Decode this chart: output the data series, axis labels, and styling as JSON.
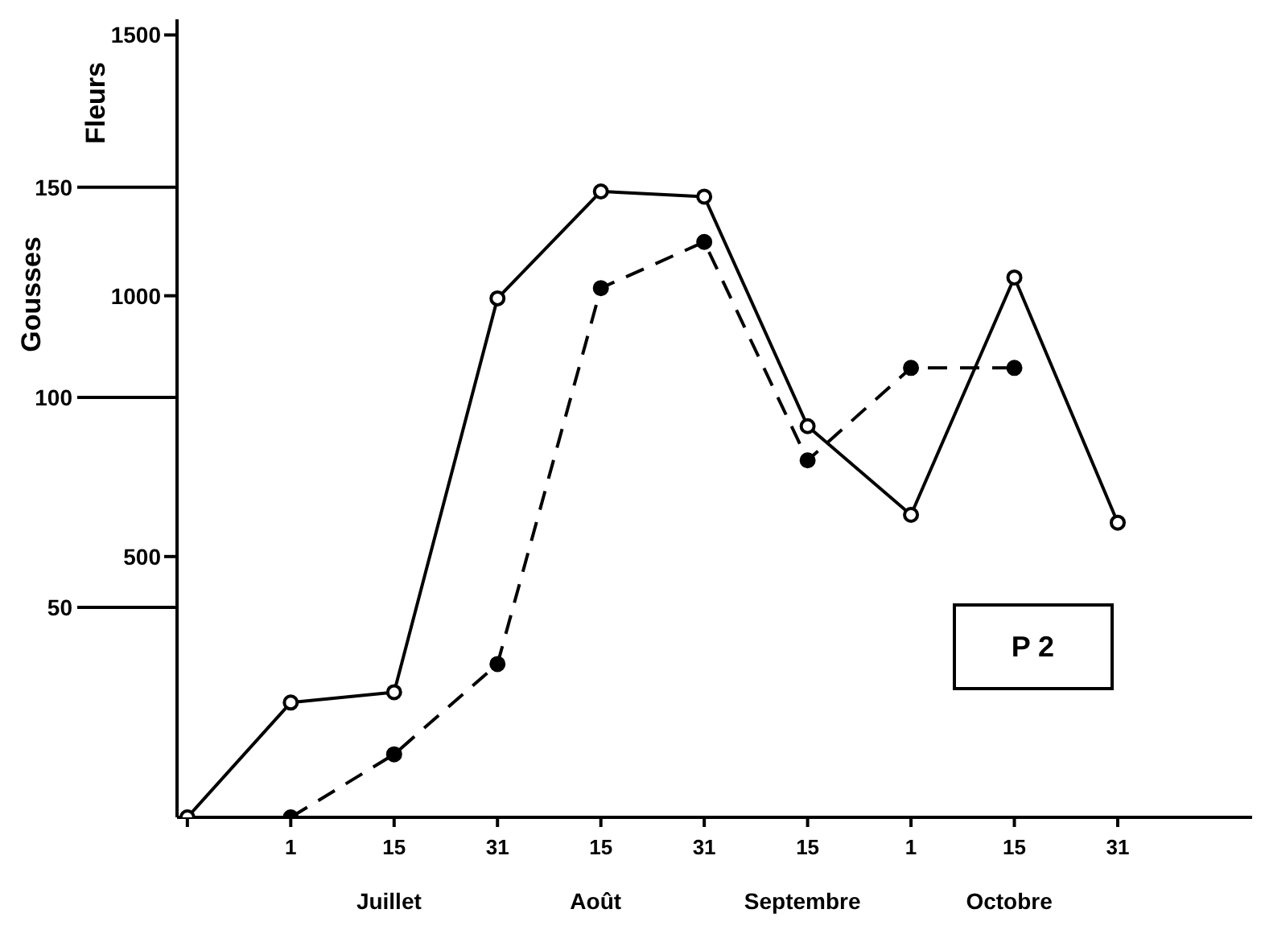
{
  "chart_data": {
    "type": "line",
    "ylabel": "Fleurs",
    "y2label": "Gousses",
    "categories": [
      null,
      "1",
      "15",
      "31",
      "15",
      "31",
      "15",
      "1",
      "15",
      "31"
    ],
    "series": [
      {
        "color": "#000000",
        "line_style": "solid",
        "values": [
          0,
          220,
          240,
          995,
          1200,
          1190,
          750,
          580,
          1035,
          565
        ]
      },
      {
        "color": "#000000",
        "line_style": "dashed",
        "axis": "y2",
        "values": [
          null,
          0,
          15,
          36.5,
          126,
          137,
          85,
          107,
          107,
          null
        ]
      }
    ],
    "ylim": [
      0,
      1530
    ],
    "yticks": [
      500,
      1000,
      1500
    ],
    "y2lim": [
      0,
      190
    ],
    "y2ticks": [
      50,
      100,
      150
    ],
    "marker": "circle",
    "grid": false,
    "legend": false,
    "annotations": [
      "P 2",
      "Juillet",
      "Août",
      "Septembre",
      "Octobre"
    ]
  }
}
